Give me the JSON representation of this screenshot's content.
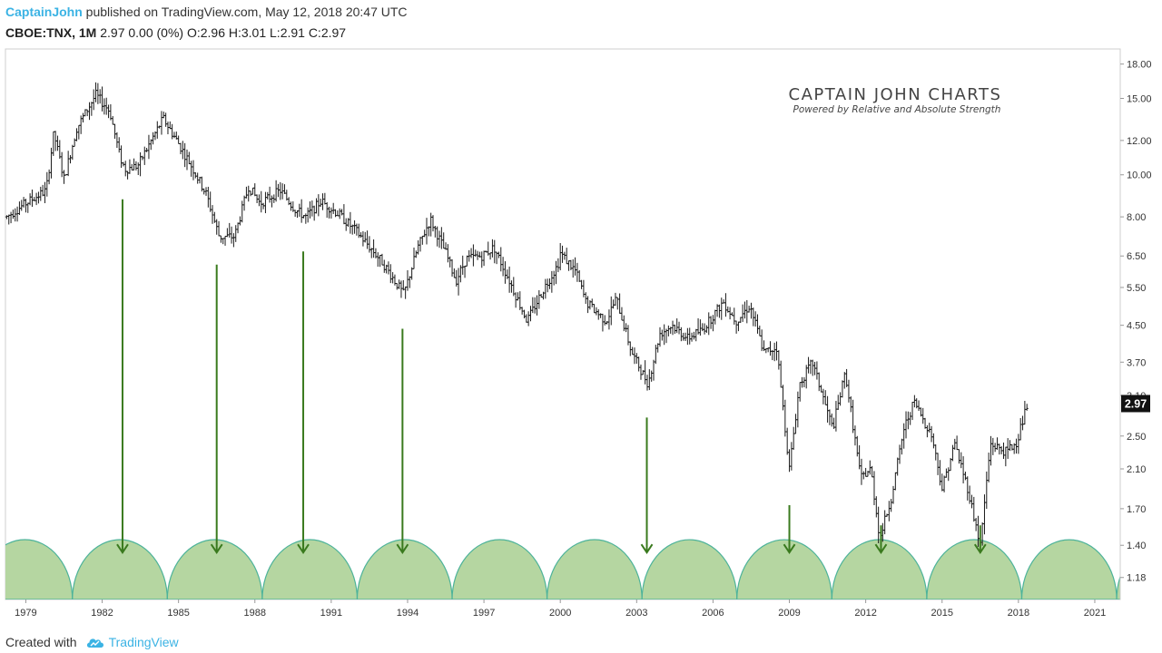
{
  "header": {
    "author": "CaptainJohn",
    "published": "published on TradingView.com, May 12, 2018 20:47 UTC"
  },
  "subheader": {
    "symbol": "CBOE:TNX, 1M",
    "quote": "2.97 0.00 (0%) O:2.96 H:3.01 L:2.91 C:2.97"
  },
  "watermark": {
    "title": "CAPTAIN JOHN CHARTS",
    "tagline": "Powered by Relative and  Absolute Strength"
  },
  "footer": {
    "created_with": "Created with",
    "brand": "TradingView",
    "brand_icon": "tradingview-cloud-icon"
  },
  "colors": {
    "bars": "#1a1a1a",
    "arrows": "#3a7a1e",
    "cycles_fill": "#b5d6a1",
    "cycles_stroke": "#4db39a",
    "price_tag_bg": "#111111",
    "header_accent": "#3bb3e4"
  },
  "chart_data": {
    "type": "ohlc",
    "interval": "1M",
    "scale": "log",
    "xlim": [
      1978.2,
      2022.0
    ],
    "ylim": [
      1.05,
      19.5
    ],
    "x_ticks": [
      "1979",
      "1982",
      "1985",
      "1988",
      "1991",
      "1994",
      "1997",
      "2000",
      "2003",
      "2006",
      "2009",
      "2012",
      "2015",
      "2018",
      "2021"
    ],
    "y_ticks": [
      "18.00",
      "15.00",
      "12.00",
      "10.00",
      "8.00",
      "6.50",
      "5.50",
      "4.50",
      "3.70",
      "3.10",
      "2.50",
      "2.10",
      "1.70",
      "1.40",
      "1.18"
    ],
    "last_price": "2.97",
    "price_path": [
      [
        1978.25,
        8.0
      ],
      [
        1979.0,
        8.6
      ],
      [
        1979.8,
        9.2
      ],
      [
        1980.1,
        12.5
      ],
      [
        1980.5,
        9.8
      ],
      [
        1981.0,
        12.8
      ],
      [
        1981.75,
        15.3
      ],
      [
        1982.3,
        14.0
      ],
      [
        1982.7,
        11.0
      ],
      [
        1982.9,
        10.3
      ],
      [
        1983.4,
        10.5
      ],
      [
        1984.4,
        13.5
      ],
      [
        1985.0,
        11.8
      ],
      [
        1985.5,
        10.5
      ],
      [
        1986.1,
        9.0
      ],
      [
        1986.6,
        7.2
      ],
      [
        1987.2,
        7.2
      ],
      [
        1987.75,
        9.4
      ],
      [
        1988.2,
        8.6
      ],
      [
        1989.0,
        9.2
      ],
      [
        1989.6,
        8.3
      ],
      [
        1990.0,
        8.0
      ],
      [
        1990.6,
        8.7
      ],
      [
        1991.3,
        8.1
      ],
      [
        1992.0,
        7.4
      ],
      [
        1993.0,
        6.3
      ],
      [
        1993.85,
        5.3
      ],
      [
        1994.4,
        6.8
      ],
      [
        1994.9,
        7.9
      ],
      [
        1995.5,
        6.6
      ],
      [
        1995.9,
        5.7
      ],
      [
        1996.3,
        6.4
      ],
      [
        1996.9,
        6.5
      ],
      [
        1997.4,
        6.8
      ],
      [
        1998.0,
        5.7
      ],
      [
        1998.7,
        4.6
      ],
      [
        1999.3,
        5.4
      ],
      [
        1999.9,
        6.2
      ],
      [
        2000.0,
        6.6
      ],
      [
        2000.6,
        6.0
      ],
      [
        2001.0,
        5.1
      ],
      [
        2001.8,
        4.6
      ],
      [
        2002.2,
        5.2
      ],
      [
        2002.8,
        3.9
      ],
      [
        2003.45,
        3.3
      ],
      [
        2003.9,
        4.3
      ],
      [
        2004.4,
        4.5
      ],
      [
        2005.0,
        4.2
      ],
      [
        2005.6,
        4.4
      ],
      [
        2006.4,
        5.1
      ],
      [
        2006.9,
        4.6
      ],
      [
        2007.45,
        5.0
      ],
      [
        2008.0,
        3.9
      ],
      [
        2008.5,
        4.0
      ],
      [
        2008.9,
        2.4
      ],
      [
        2009.0,
        2.1
      ],
      [
        2009.4,
        3.3
      ],
      [
        2009.9,
        3.7
      ],
      [
        2010.7,
        2.6
      ],
      [
        2011.2,
        3.5
      ],
      [
        2011.8,
        2.0
      ],
      [
        2012.2,
        2.1
      ],
      [
        2012.55,
        1.45
      ],
      [
        2013.0,
        1.8
      ],
      [
        2013.5,
        2.6
      ],
      [
        2013.9,
        3.0
      ],
      [
        2014.6,
        2.5
      ],
      [
        2015.0,
        1.9
      ],
      [
        2015.5,
        2.4
      ],
      [
        2016.0,
        1.9
      ],
      [
        2016.5,
        1.4
      ],
      [
        2016.9,
        2.4
      ],
      [
        2017.5,
        2.3
      ],
      [
        2017.9,
        2.4
      ],
      [
        2018.37,
        2.97
      ]
    ],
    "cycle_lows": [
      1982.8,
      1986.5,
      1989.9,
      1993.8,
      2003.4,
      2009.0,
      2012.6,
      2016.5
    ],
    "cycle_period_years": 3.73,
    "cycle_phase_start": 1977.1
  }
}
